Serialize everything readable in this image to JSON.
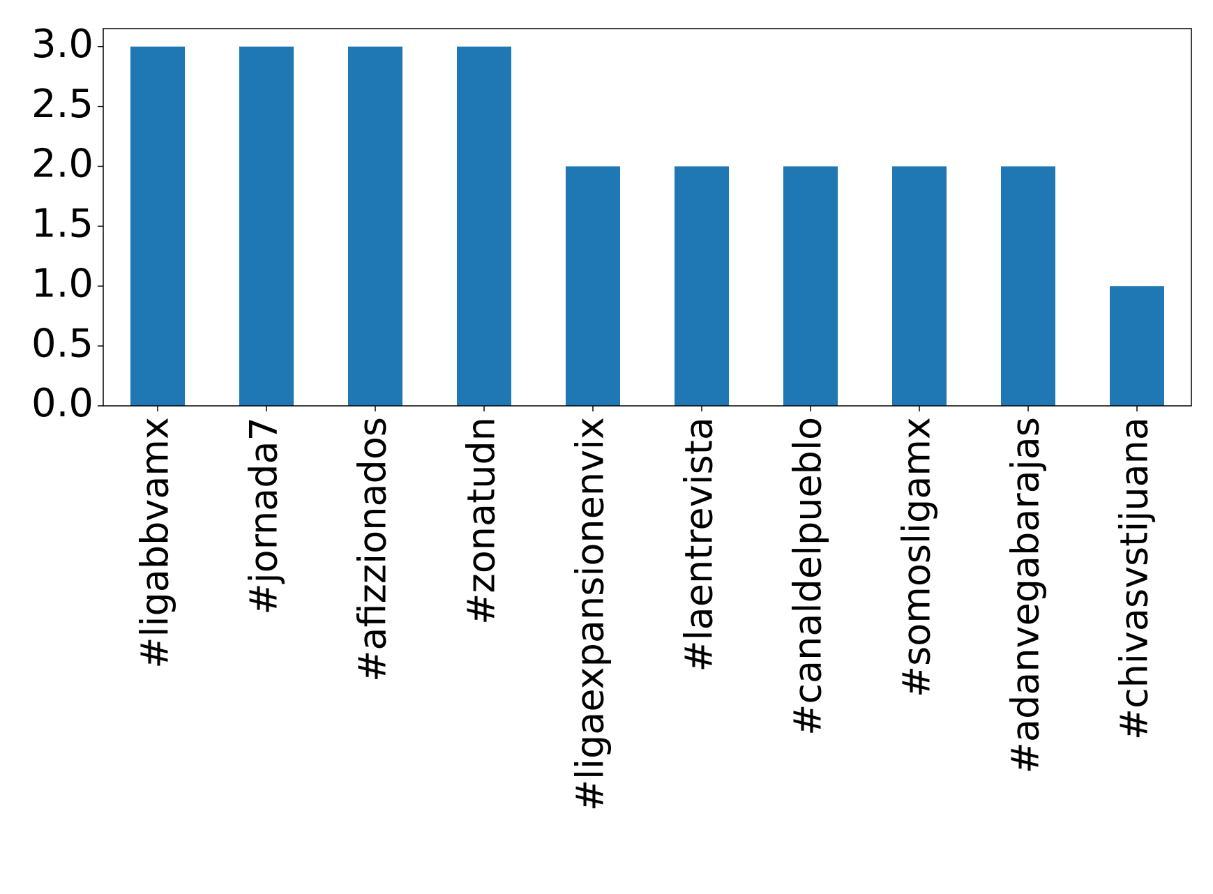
{
  "chart_data": {
    "type": "bar",
    "categories": [
      "#ligabbvamx",
      "#jornada7",
      "#afizzionados",
      "#zonatudn",
      "#ligaexpansionenvix",
      "#laentrevista",
      "#canaldelpueblo",
      "#somosligamx",
      "#adanvegabarajas",
      "#chivasvstijuana"
    ],
    "values": [
      3,
      3,
      3,
      3,
      2,
      2,
      2,
      2,
      2,
      1
    ],
    "color": "#1f77b4",
    "ylim": [
      0,
      3.15
    ],
    "yticks": [
      {
        "value": 0,
        "label": "0.0"
      },
      0.5,
      {
        "value": 1,
        "label": "1.0"
      },
      1.5,
      {
        "value": 2,
        "label": "2.0"
      },
      2.5,
      {
        "value": 3,
        "label": "3.0"
      }
    ],
    "grid": false
  }
}
